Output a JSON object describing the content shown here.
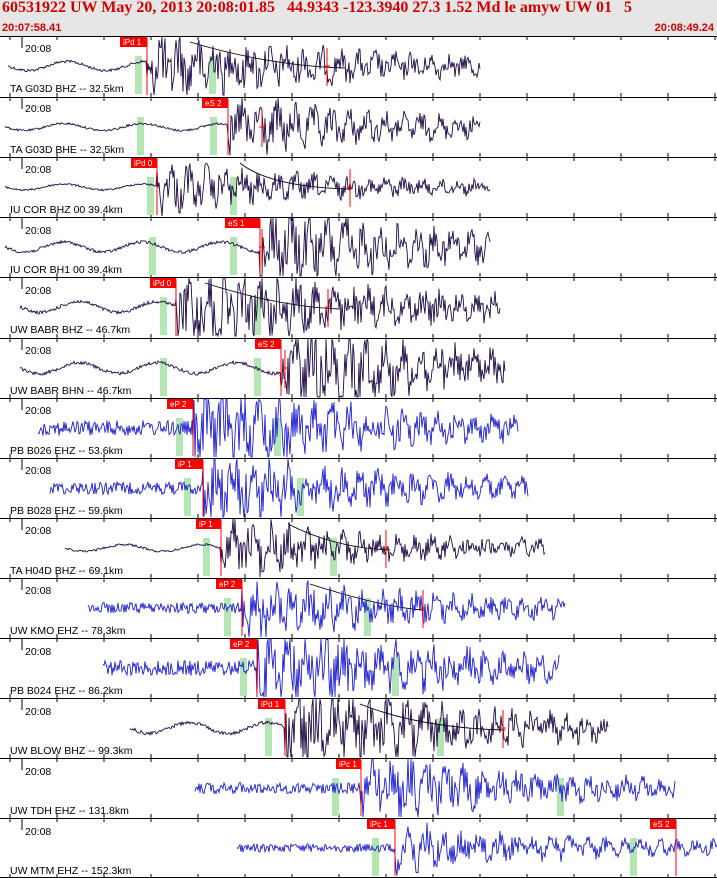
{
  "header": {
    "title": "60531922 UW May 20, 2013 20:08:01.85   44.9343 -123.3940 27.3 1.52 Md le amyw UW 01   5",
    "time_start": "20:07:58.41",
    "time_end": "20:08:49.24"
  },
  "colors": {
    "accent": "#d40000",
    "header_bg": "#e6e6e6",
    "trace_dark": "#1e0a46",
    "trace_blue": "#1f1fd2",
    "pick": "#ff0000",
    "window": "#b4e6b4"
  },
  "chart_data": {
    "type": "line",
    "title": "",
    "time_axis": {
      "start": "20:07:58.41",
      "end": "20:08:49.24",
      "tick_label": "20:08"
    },
    "traces": [
      {
        "label": "TA G03D BHZ -- 32.5km",
        "tick": "20:08",
        "color": "dark",
        "pick": "iPd 1"
      },
      {
        "label": "TA G03D BHE -- 32.5km",
        "tick": "20:08",
        "color": "dark",
        "pick": "eS 2"
      },
      {
        "label": "IU COR BHZ 00 39.4km",
        "tick": "20:08",
        "color": "dark",
        "pick": "iPd 0"
      },
      {
        "label": "IU COR BH1 00 39.4km",
        "tick": "20:08",
        "color": "dark",
        "pick": "eS 1"
      },
      {
        "label": "UW BABR BHZ -- 46.7km",
        "tick": "20:08",
        "color": "dark",
        "pick": "iPd 0"
      },
      {
        "label": "UW BABR BHN -- 46.7km",
        "tick": "20:08",
        "color": "dark",
        "pick": "eS 2"
      },
      {
        "label": "PB B026 EHZ -- 53.6km",
        "tick": "20:08",
        "color": "blue",
        "pick": "eP 2"
      },
      {
        "label": "PB B028 EHZ -- 59.6km",
        "tick": "20:08",
        "color": "blue",
        "pick": "iP 1"
      },
      {
        "label": "TA H04D BHZ -- 69.1km",
        "tick": "20:08",
        "color": "dark",
        "pick": "iP 1"
      },
      {
        "label": "UW KMO EHZ -- 78.3km",
        "tick": "20:08",
        "color": "blue",
        "pick": "eP 2"
      },
      {
        "label": "PB B024 EHZ -- 86.2km",
        "tick": "20:08",
        "color": "blue",
        "pick": "eP 2"
      },
      {
        "label": "UW BLOW BHZ -- 99.3km",
        "tick": "20:08",
        "color": "dark",
        "pick": "iPd 1"
      },
      {
        "label": "UW TDH EHZ -- 131.8km",
        "tick": "20:08",
        "color": "blue",
        "pick": "iPc 1"
      },
      {
        "label": "UW MTM EHZ -- 152.3km",
        "tick": "20:08",
        "color": "blue",
        "pick": "iPc 1",
        "pick2": "eS 2"
      }
    ]
  }
}
